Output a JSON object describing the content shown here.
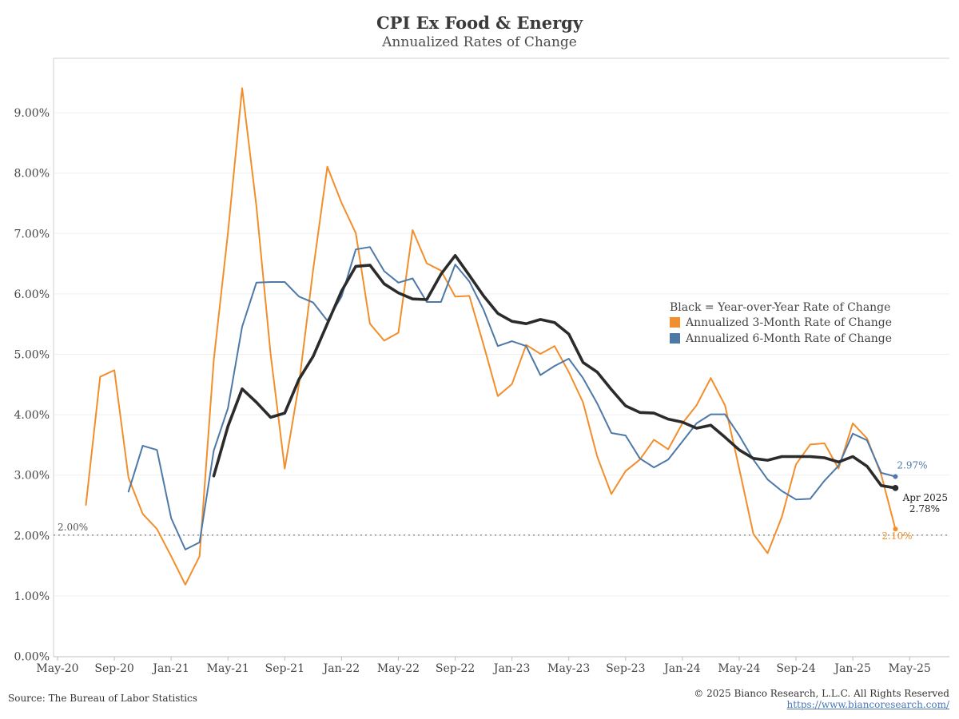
{
  "header": {
    "title": "CPI Ex Food & Energy",
    "subtitle": "Annualized Rates of Change"
  },
  "footer": {
    "source": "Source: The Bureau of Labor Statistics",
    "copyright": "© 2025 Bianco Research, L.L.C. All Rights Reserved",
    "url": "https://www.biancoresearch.com/"
  },
  "chart_data": {
    "type": "line",
    "title": "CPI Ex Food & Energy",
    "subtitle": "Annualized Rates of Change",
    "x_ticks": [
      "May-20",
      "Sep-20",
      "Jan-21",
      "May-21",
      "Sep-21",
      "Jan-22",
      "May-22",
      "Sep-22",
      "Jan-23",
      "May-23",
      "Sep-23",
      "Jan-24",
      "May-24",
      "Sep-24",
      "Jan-25",
      "May-25"
    ],
    "y_ticks": [
      "0.00%",
      "1.00%",
      "2.00%",
      "3.00%",
      "4.00%",
      "5.00%",
      "6.00%",
      "7.00%",
      "8.00%",
      "9.00%"
    ],
    "ylim": [
      0,
      10
    ],
    "x_start": "2020-05",
    "grid": true,
    "legend_position": "right",
    "legend": {
      "header": "Black = Year-over-Year Rate of Change",
      "items": [
        "Annualized 3-Month Rate of Change",
        "Annualized 6-Month Rate of Change"
      ]
    },
    "reference_line": {
      "value": 2.0,
      "label": "2.00%"
    },
    "series": [
      {
        "name": "Annualized 3-Month Rate of Change",
        "color": "#f28e2b",
        "start": "2020-07",
        "values": [
          2.5,
          4.62,
          4.73,
          2.95,
          2.35,
          2.1,
          1.65,
          1.18,
          1.65,
          4.9,
          7.0,
          9.4,
          7.45,
          5.0,
          3.1,
          4.5,
          6.4,
          8.1,
          7.5,
          7.0,
          5.5,
          5.22,
          5.35,
          7.05,
          6.5,
          6.38,
          5.95,
          5.96,
          5.15,
          4.3,
          4.5,
          5.15,
          5.0,
          5.13,
          4.7,
          4.2,
          3.3,
          2.68,
          3.06,
          3.25,
          3.58,
          3.42,
          3.85,
          4.15,
          4.6,
          4.15,
          3.1,
          2.02,
          1.7,
          2.3,
          3.17,
          3.5,
          3.52,
          3.1,
          3.85,
          3.6,
          3.0,
          2.1
        ]
      },
      {
        "name": "Annualized 6-Month Rate of Change",
        "color": "#4e79a7",
        "start": "2020-10",
        "values": [
          2.72,
          3.48,
          3.41,
          2.28,
          1.76,
          1.88,
          3.4,
          4.1,
          5.45,
          6.18,
          6.19,
          6.19,
          5.95,
          5.85,
          5.55,
          5.95,
          6.73,
          6.77,
          6.37,
          6.18,
          6.25,
          5.86,
          5.86,
          6.48,
          6.2,
          5.73,
          5.13,
          5.21,
          5.13,
          4.65,
          4.8,
          4.92,
          4.6,
          4.18,
          3.69,
          3.65,
          3.27,
          3.12,
          3.25,
          3.55,
          3.85,
          4.0,
          4.0,
          3.65,
          3.25,
          2.92,
          2.73,
          2.59,
          2.6,
          2.9,
          3.15,
          3.68,
          3.57,
          3.03,
          2.97
        ]
      },
      {
        "name": "Year-over-Year Rate of Change",
        "color": "#2b2b2b",
        "start": "2021-04",
        "values": [
          2.98,
          3.8,
          4.42,
          4.2,
          3.95,
          4.02,
          4.58,
          4.96,
          5.5,
          6.04,
          6.45,
          6.47,
          6.16,
          6.01,
          5.91,
          5.9,
          6.32,
          6.63,
          6.3,
          5.96,
          5.67,
          5.54,
          5.5,
          5.57,
          5.52,
          5.33,
          4.86,
          4.7,
          4.41,
          4.14,
          4.03,
          4.02,
          3.92,
          3.87,
          3.77,
          3.82,
          3.62,
          3.41,
          3.27,
          3.24,
          3.3,
          3.3,
          3.3,
          3.28,
          3.21,
          3.3,
          3.14,
          2.82,
          2.78
        ]
      }
    ],
    "annotations": {
      "six_month_last": "2.97%",
      "three_month_last": "2.10%",
      "yoy_date": "Apr 2025",
      "yoy_last": "2.78%"
    }
  }
}
